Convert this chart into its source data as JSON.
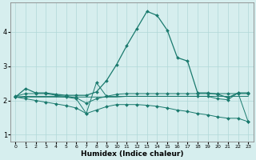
{
  "xlabel": "Humidex (Indice chaleur)",
  "background_color": "#d6eeee",
  "grid_color": "#b0d8d8",
  "line_color": "#1a7a6e",
  "xlim": [
    -0.5,
    23.5
  ],
  "ylim": [
    0.8,
    4.85
  ],
  "xticks": [
    0,
    1,
    2,
    3,
    4,
    5,
    6,
    7,
    8,
    9,
    10,
    11,
    12,
    13,
    14,
    15,
    16,
    17,
    18,
    19,
    20,
    21,
    22,
    23
  ],
  "yticks": [
    1,
    2,
    3,
    4
  ],
  "series": {
    "line1_x": [
      0,
      1,
      2,
      3,
      4,
      5,
      6,
      7,
      8,
      9,
      10,
      11,
      12,
      13,
      14,
      15,
      16,
      17,
      18,
      19,
      20,
      21,
      22,
      23
    ],
    "line1_y": [
      2.1,
      2.35,
      2.22,
      2.22,
      2.18,
      2.15,
      2.15,
      2.15,
      2.25,
      2.58,
      3.05,
      3.6,
      4.1,
      4.6,
      4.48,
      4.05,
      3.25,
      3.15,
      2.22,
      2.22,
      2.18,
      2.08,
      2.22,
      2.22
    ],
    "line2_x": [
      0,
      1,
      2,
      3,
      4,
      5,
      6,
      7,
      8,
      9,
      10,
      11,
      12,
      13,
      14,
      15,
      16,
      17,
      18,
      19,
      20,
      21,
      22,
      23
    ],
    "line2_y": [
      2.12,
      2.2,
      2.2,
      2.2,
      2.15,
      2.12,
      2.08,
      1.92,
      2.05,
      2.12,
      2.18,
      2.2,
      2.2,
      2.2,
      2.2,
      2.2,
      2.2,
      2.2,
      2.2,
      2.2,
      2.2,
      2.2,
      2.2,
      2.2
    ],
    "line3_x": [
      0,
      1,
      2,
      3,
      4,
      5,
      6,
      7,
      8,
      9,
      10,
      11,
      12,
      13,
      14,
      15,
      16,
      17,
      18,
      19,
      20,
      21,
      22,
      23
    ],
    "line3_y": [
      2.1,
      2.12,
      2.12,
      2.12,
      2.12,
      2.1,
      2.1,
      2.1,
      2.1,
      2.1,
      2.1,
      2.12,
      2.12,
      2.12,
      2.12,
      2.12,
      2.12,
      2.12,
      2.12,
      2.12,
      2.12,
      2.12,
      2.12,
      2.12
    ],
    "line4_x": [
      0,
      1,
      2,
      3,
      4,
      5,
      6,
      7,
      8,
      9,
      10,
      11,
      12,
      13,
      14,
      15,
      16,
      17,
      18,
      19,
      20,
      21,
      22,
      23
    ],
    "line4_y": [
      2.1,
      2.05,
      2.0,
      1.95,
      1.9,
      1.85,
      1.78,
      1.62,
      1.72,
      1.82,
      1.88,
      1.88,
      1.88,
      1.86,
      1.83,
      1.78,
      1.72,
      1.68,
      1.62,
      1.58,
      1.52,
      1.48,
      1.48,
      1.38
    ],
    "line5_x": [
      0,
      1,
      5,
      6,
      7,
      8,
      9,
      18,
      19,
      20,
      21,
      22,
      23
    ],
    "line5_y": [
      2.1,
      2.1,
      2.1,
      2.05,
      1.62,
      2.52,
      2.12,
      2.12,
      2.12,
      2.05,
      2.02,
      2.22,
      1.38
    ]
  }
}
